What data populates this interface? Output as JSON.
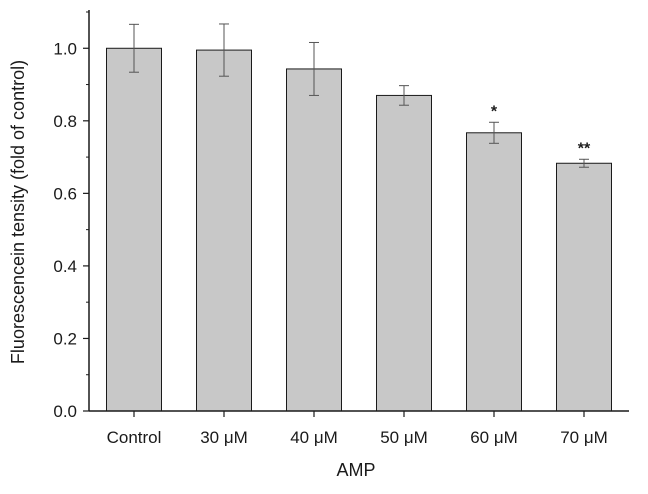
{
  "chart_data": {
    "type": "bar",
    "title": "",
    "xlabel": "AMP",
    "ylabel": "Fluorescencein tensity (fold of control)",
    "categories": [
      "Control",
      "30 μM",
      "40 μM",
      "50 μM",
      "60 μM",
      "70 μM"
    ],
    "values": [
      1.0,
      0.995,
      0.943,
      0.87,
      0.767,
      0.683
    ],
    "errors": [
      0.066,
      0.072,
      0.073,
      0.027,
      0.029,
      0.011
    ],
    "significance": [
      "",
      "",
      "",
      "",
      "*",
      "**"
    ],
    "ylim": [
      0,
      1.1
    ],
    "yticks": [
      0.0,
      0.2,
      0.4,
      0.6,
      0.8,
      1.0
    ],
    "ytick_labels": [
      "0.0",
      "0.2",
      "0.4",
      "0.6",
      "0.8",
      "1.0"
    ],
    "grid": false,
    "bar_color": "#c8c8c8",
    "edge_color": "#1a1a1a"
  }
}
